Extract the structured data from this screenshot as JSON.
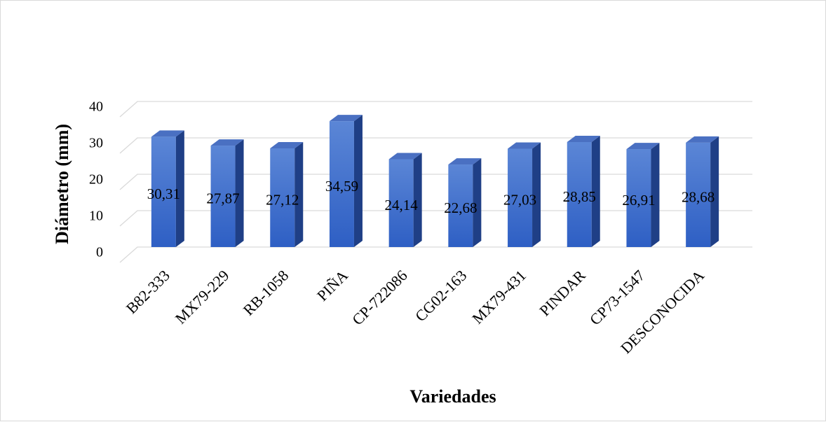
{
  "chart_data": {
    "type": "bar",
    "categories": [
      "B82-333",
      "MX79-229",
      "RB-1058",
      "PIÑA",
      "CP-722086",
      "CG02-163",
      "MX79-431",
      "PINDAR",
      "CP73-1547",
      "DESCONOCIDA"
    ],
    "values": [
      30.31,
      27.87,
      27.12,
      34.59,
      24.14,
      22.68,
      27.03,
      28.85,
      26.91,
      28.68
    ],
    "data_labels": [
      "30,31",
      "27,87",
      "27,12",
      "34,59",
      "24,14",
      "22,68",
      "27,03",
      "28,85",
      "26,91",
      "28,68"
    ],
    "y_ticks": [
      0,
      10,
      20,
      30,
      40
    ],
    "y_tick_labels": [
      "0",
      "10",
      "20",
      "30",
      "40"
    ],
    "ylim": [
      0,
      40
    ],
    "xlabel": "Variedades",
    "ylabel": "Diámetro (mm)",
    "grid": true,
    "legend": "none",
    "style": "3d-column",
    "colors": {
      "bar_front_top": "#5b86d6",
      "bar_front_bottom": "#2e5fc4",
      "bar_side": "#1f3f86",
      "bar_top": "#4a70c2",
      "grid": "#d9d9d9"
    }
  }
}
